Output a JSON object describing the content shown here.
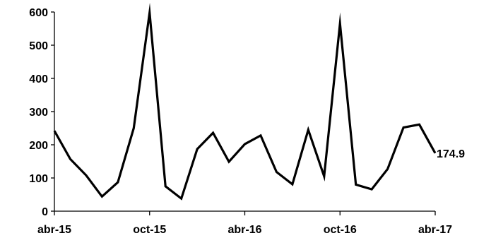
{
  "chart_data": {
    "type": "line",
    "title": "",
    "xlabel": "",
    "ylabel": "",
    "ylim": [
      0,
      600
    ],
    "y_ticks": [
      0,
      100,
      200,
      300,
      400,
      500,
      600
    ],
    "x_tick_labels": [
      "abr-15",
      "oct-15",
      "abr-16",
      "oct-16",
      "abr-17"
    ],
    "x_tick_index": [
      0,
      6,
      12,
      18,
      24
    ],
    "grid": false,
    "legend": "none",
    "line_color": "#000000",
    "series": [
      {
        "values": [
          242,
          157,
          108,
          44,
          87,
          250,
          598,
          75,
          38,
          187,
          236,
          149,
          202,
          228,
          118,
          81,
          245,
          105,
          565,
          80,
          66,
          127,
          252,
          261,
          174.9
        ]
      }
    ],
    "end_label": "174.9"
  }
}
